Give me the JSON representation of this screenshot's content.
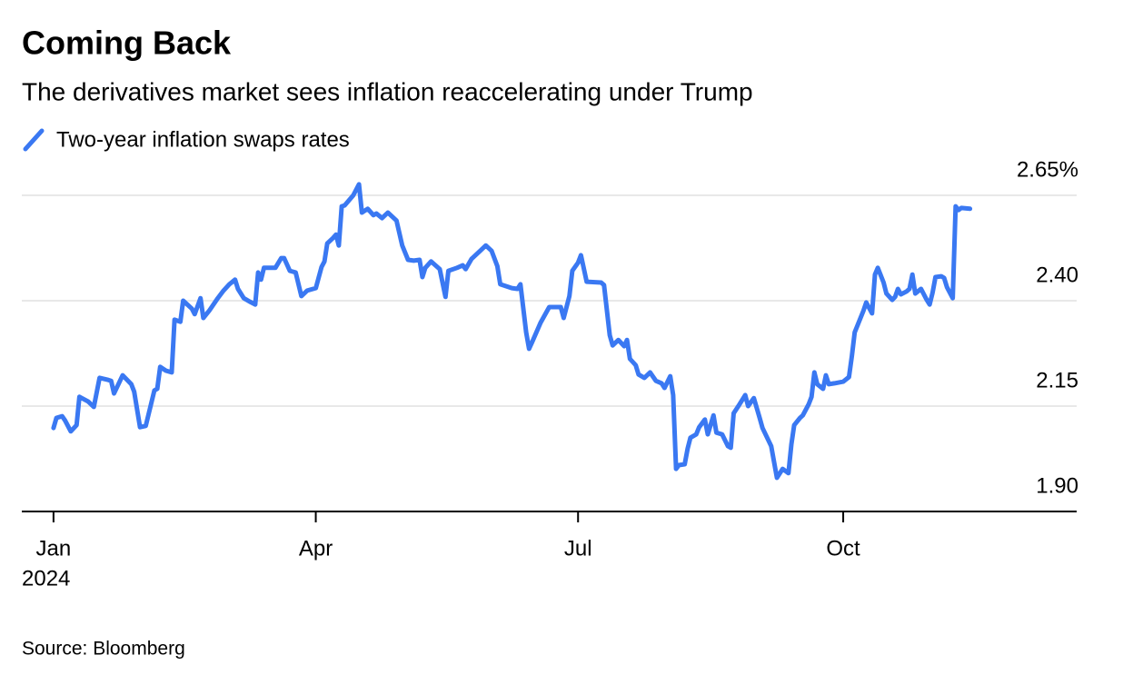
{
  "chart_data": {
    "type": "line",
    "title": "Coming Back",
    "subtitle": "The derivatives market sees inflation reaccelerating under Trump",
    "source": "Source: Bloomberg",
    "x_year_label": "2024",
    "xlim": [
      -11,
      355
    ],
    "xticks": [
      {
        "value": 0,
        "label": "Jan"
      },
      {
        "value": 91,
        "label": "Apr"
      },
      {
        "value": 182,
        "label": "Jul"
      },
      {
        "value": 274,
        "label": "Oct"
      }
    ],
    "ylim": [
      1.9,
      2.65
    ],
    "yticks": [
      {
        "value": 1.9,
        "label": "1.90"
      },
      2.15,
      {
        "value": 2.4,
        "label": "2.40"
      },
      {
        "value": 2.65,
        "label": "2.65%"
      }
    ],
    "grid": true,
    "x": [
      0,
      1,
      3,
      4,
      6,
      8,
      9,
      12,
      14,
      16,
      19,
      20,
      21,
      24,
      27,
      28,
      30,
      32,
      35,
      36,
      37,
      39,
      41,
      42,
      44,
      45,
      48,
      49,
      51,
      52,
      54,
      57,
      59,
      61,
      63,
      64,
      66,
      68,
      70,
      71,
      72,
      73,
      75,
      77,
      79,
      80,
      82,
      84,
      86,
      88,
      91,
      93,
      94,
      95,
      97,
      98,
      99,
      100,
      101,
      104,
      106,
      107,
      109,
      111,
      112,
      114,
      116,
      119,
      121,
      123,
      125,
      127,
      128,
      129,
      131,
      134,
      136,
      137,
      140,
      142,
      143,
      145,
      148,
      150,
      152,
      154,
      155,
      159,
      161,
      162,
      164,
      165,
      166,
      169,
      172,
      176,
      177,
      179,
      180,
      182,
      183,
      185,
      190,
      191,
      193,
      194,
      196,
      198,
      199,
      200,
      202,
      203,
      205,
      207,
      209,
      211,
      212,
      214,
      215,
      216,
      217,
      219,
      220,
      221,
      223,
      224,
      226,
      227,
      229,
      230,
      232,
      234,
      235,
      236,
      238,
      240,
      241,
      243,
      245,
      246,
      249,
      251,
      253,
      255,
      256,
      257,
      259,
      260,
      262,
      263,
      264,
      265,
      267,
      268,
      269,
      271,
      274,
      276,
      277,
      278,
      279,
      281,
      282,
      284,
      285,
      286,
      288,
      289,
      291,
      292,
      293,
      294,
      296,
      297,
      298,
      299,
      301,
      303,
      304,
      305,
      306,
      308,
      309,
      310,
      312,
      313,
      314,
      315,
      318
    ],
    "series": [
      {
        "name": "Two-year inflation swaps rates",
        "color": "#3a78f2",
        "values": [
          2.098,
          2.122,
          2.126,
          2.116,
          2.09,
          2.105,
          2.172,
          2.161,
          2.148,
          2.217,
          2.212,
          2.21,
          2.18,
          2.223,
          2.202,
          2.184,
          2.1,
          2.103,
          2.187,
          2.191,
          2.243,
          2.234,
          2.23,
          2.355,
          2.35,
          2.4,
          2.381,
          2.368,
          2.406,
          2.359,
          2.376,
          2.406,
          2.424,
          2.439,
          2.45,
          2.428,
          2.406,
          2.398,
          2.391,
          2.467,
          2.45,
          2.478,
          2.478,
          2.478,
          2.501,
          2.501,
          2.471,
          2.467,
          2.411,
          2.424,
          2.43,
          2.48,
          2.493,
          2.536,
          2.549,
          2.557,
          2.531,
          2.624,
          2.626,
          2.65,
          2.676,
          2.609,
          2.618,
          2.603,
          2.607,
          2.596,
          2.609,
          2.59,
          2.531,
          2.497,
          2.495,
          2.497,
          2.456,
          2.478,
          2.493,
          2.475,
          2.409,
          2.471,
          2.478,
          2.484,
          2.475,
          2.499,
          2.518,
          2.531,
          2.518,
          2.482,
          2.439,
          2.43,
          2.428,
          2.439,
          2.325,
          2.286,
          2.301,
          2.348,
          2.385,
          2.385,
          2.359,
          2.411,
          2.471,
          2.49,
          2.508,
          2.445,
          2.443,
          2.437,
          2.318,
          2.294,
          2.307,
          2.292,
          2.307,
          2.262,
          2.247,
          2.225,
          2.217,
          2.23,
          2.21,
          2.204,
          2.193,
          2.221,
          2.176,
          2.001,
          2.01,
          2.012,
          2.049,
          2.075,
          2.083,
          2.1,
          2.118,
          2.083,
          2.128,
          2.087,
          2.083,
          2.055,
          2.051,
          2.133,
          2.154,
          2.176,
          2.15,
          2.169,
          2.122,
          2.098,
          2.055,
          1.98,
          2.001,
          1.991,
          2.059,
          2.105,
          2.122,
          2.128,
          2.154,
          2.172,
          2.23,
          2.202,
          2.191,
          2.223,
          2.202,
          2.204,
          2.208,
          2.219,
          2.269,
          2.325,
          2.342,
          2.376,
          2.396,
          2.37,
          2.462,
          2.478,
          2.443,
          2.417,
          2.402,
          2.409,
          2.428,
          2.415,
          2.422,
          2.428,
          2.462,
          2.417,
          2.428,
          2.402,
          2.391,
          2.419,
          2.456,
          2.458,
          2.454,
          2.432,
          2.406,
          2.624,
          2.615,
          2.62,
          2.618
        ]
      }
    ]
  }
}
